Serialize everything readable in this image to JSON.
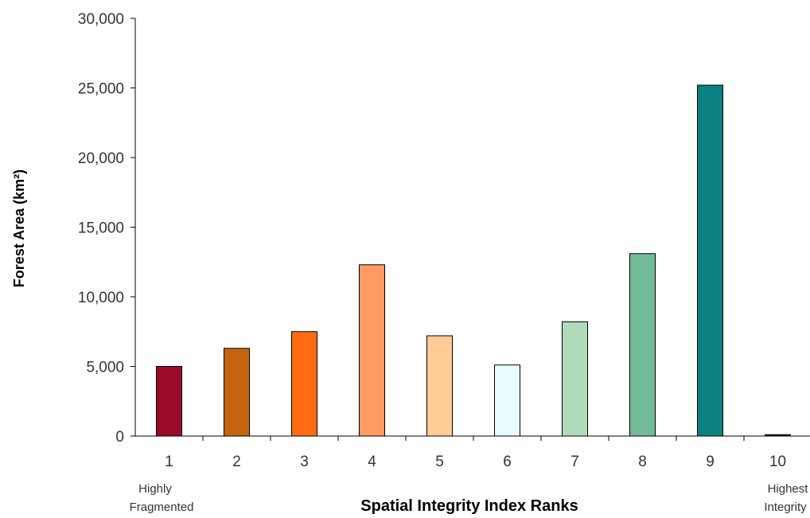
{
  "chart_data": {
    "type": "bar",
    "categories": [
      "1",
      "2",
      "3",
      "4",
      "5",
      "6",
      "7",
      "8",
      "9",
      "10"
    ],
    "values": [
      5000,
      6300,
      7500,
      12300,
      7200,
      5100,
      8200,
      13100,
      25200,
      100
    ],
    "colors": [
      "#9b0a2a",
      "#c5640e",
      "#ff6a14",
      "#ff9a62",
      "#ffcc98",
      "#eafcff",
      "#b2dbbc",
      "#72bc98",
      "#0a8080",
      "#2a2a2a"
    ],
    "xlabel": "Spatial Integrity Index Ranks",
    "ylabel": "Forest Area (km²)",
    "ylim": [
      0,
      30000
    ],
    "yticks": [
      "0",
      "5,000",
      "10,000",
      "15,000",
      "20,000",
      "25,000",
      "30,000"
    ],
    "grid": false,
    "annotations": {
      "low_line1": "Highly",
      "low_line2": "Fragmented",
      "high_line1": "Highest",
      "high_line2": "Integrity"
    }
  }
}
